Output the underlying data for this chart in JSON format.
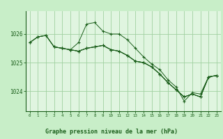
{
  "background_color": "#c8eec8",
  "plot_bg_color": "#e0f5e0",
  "grid_color": "#a0d0a0",
  "line_color": "#1a5e1a",
  "xlim": [
    -0.5,
    23.5
  ],
  "ylim": [
    1023.3,
    1026.8
  ],
  "yticks": [
    1024,
    1025,
    1026
  ],
  "xticks": [
    0,
    1,
    2,
    3,
    4,
    5,
    6,
    7,
    8,
    9,
    10,
    11,
    12,
    13,
    14,
    15,
    16,
    17,
    18,
    19,
    20,
    21,
    22,
    23
  ],
  "xlabel": "Graphe pression niveau de la mer (hPa)",
  "lines": [
    {
      "x": [
        0,
        1,
        2,
        3,
        4,
        5,
        6,
        7,
        8,
        9,
        10,
        11,
        12,
        13,
        14,
        15,
        16,
        17,
        18,
        19,
        20,
        21,
        22,
        23
      ],
      "y": [
        1025.7,
        1025.9,
        1025.95,
        1025.55,
        1025.5,
        1025.45,
        1025.7,
        1026.35,
        1026.4,
        1026.1,
        1026.0,
        1026.0,
        1025.8,
        1025.5,
        1025.2,
        1024.95,
        1024.75,
        1024.4,
        1024.15,
        1023.65,
        1023.95,
        1023.9,
        1024.5,
        1024.55
      ]
    },
    {
      "x": [
        0,
        1,
        2,
        3,
        4,
        5,
        6,
        7,
        8,
        9,
        10,
        11,
        12,
        13,
        14,
        15,
        16,
        17,
        18,
        19,
        20,
        21,
        22,
        23
      ],
      "y": [
        1025.7,
        1025.9,
        1025.95,
        1025.55,
        1025.5,
        1025.45,
        1025.4,
        1025.5,
        1025.55,
        1025.6,
        1025.45,
        1025.4,
        1025.25,
        1025.05,
        1025.0,
        1024.85,
        1024.6,
        1024.3,
        1024.05,
        1023.8,
        1023.9,
        1023.8,
        1024.5,
        1024.55
      ]
    },
    {
      "x": [
        0,
        1,
        2,
        3,
        4,
        5,
        6,
        7,
        8,
        9,
        10,
        11,
        12,
        13,
        14,
        15,
        16,
        17,
        18,
        19,
        20,
        21,
        22,
        23
      ],
      "y": [
        1025.7,
        1025.9,
        1025.95,
        1025.55,
        1025.5,
        1025.45,
        1025.4,
        1025.5,
        1025.55,
        1025.6,
        1025.45,
        1025.4,
        1025.25,
        1025.05,
        1025.0,
        1024.85,
        1024.6,
        1024.3,
        1024.05,
        1023.8,
        1023.9,
        1023.8,
        1024.5,
        1024.55
      ]
    },
    {
      "x": [
        3,
        4,
        5,
        6,
        7,
        8,
        9,
        10,
        11,
        12,
        13,
        14,
        15,
        16,
        17,
        18,
        19,
        20,
        21,
        22,
        23
      ],
      "y": [
        1025.55,
        1025.5,
        1025.45,
        1025.4,
        1025.5,
        1025.55,
        1025.6,
        1025.45,
        1025.4,
        1025.25,
        1025.05,
        1025.0,
        1024.85,
        1024.6,
        1024.3,
        1024.05,
        1023.8,
        1023.9,
        1023.8,
        1024.5,
        1024.55
      ]
    }
  ]
}
